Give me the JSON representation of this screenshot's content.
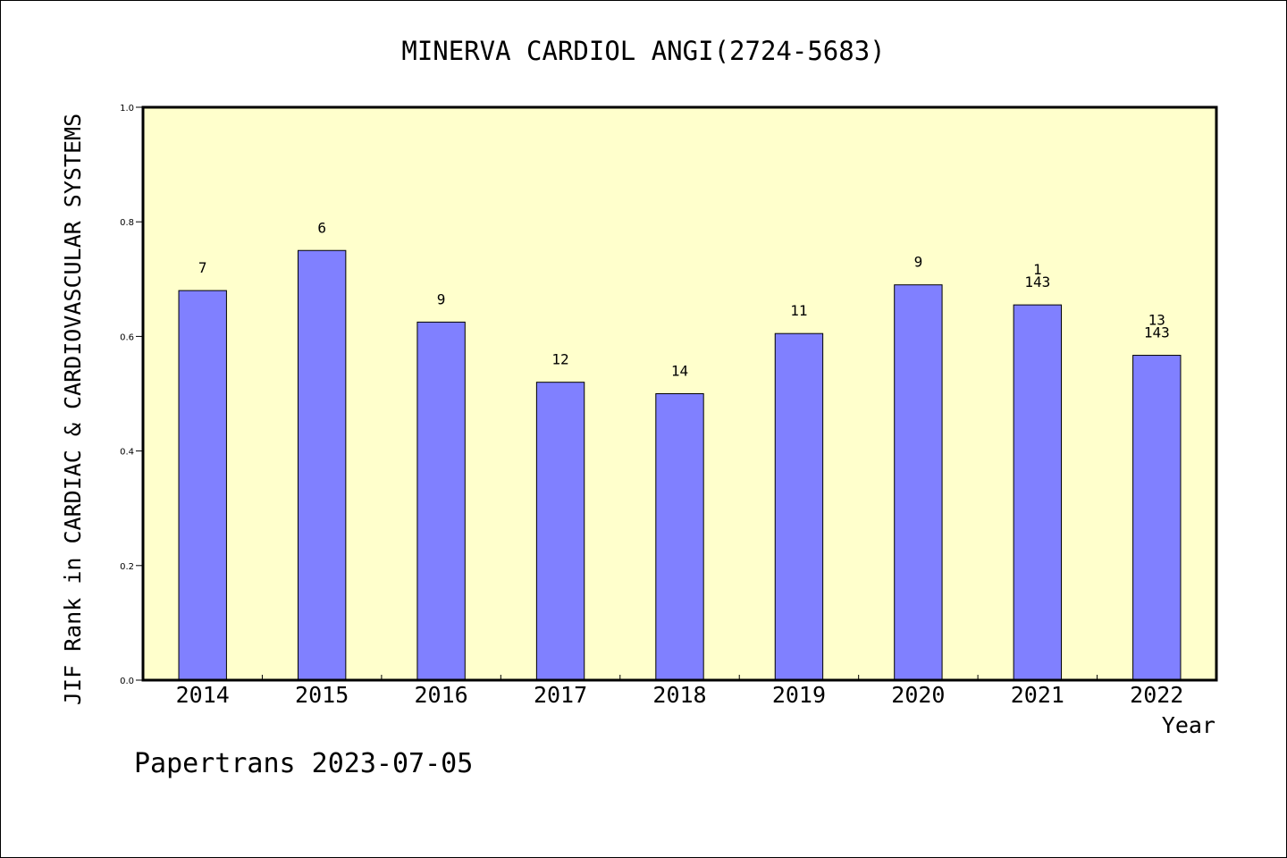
{
  "chart_data": {
    "type": "bar",
    "title": "MINERVA CARDIOL ANGI(2724-5683)",
    "ylabel": "JIF Rank in CARDIAC & CARDIOVASCULAR SYSTEMS",
    "xlabel": "Year",
    "categories": [
      "2014",
      "2015",
      "2016",
      "2017",
      "2018",
      "2019",
      "2020",
      "2021",
      "2022"
    ],
    "values": [
      0.68,
      0.75,
      0.625,
      0.52,
      0.5,
      0.605,
      0.69,
      0.655,
      0.567
    ],
    "bar_labels": [
      [
        "7"
      ],
      [
        "6"
      ],
      [
        "9"
      ],
      [
        "12"
      ],
      [
        "14"
      ],
      [
        "11"
      ],
      [
        "9"
      ],
      [
        "1",
        "143"
      ],
      [
        "13",
        "143"
      ]
    ],
    "ylim": [
      0,
      1.0
    ],
    "yticks": [
      0.0,
      0.2,
      0.4,
      0.6,
      0.8,
      1.0
    ],
    "ytick_labels": [
      "0.0",
      "0.2",
      "0.4",
      "0.6",
      "0.8",
      "1.0"
    ],
    "grid": false,
    "colors": {
      "plot_background": "#ffffcc",
      "bar_fill": "#8080ff",
      "bar_stroke": "#000000"
    }
  },
  "footer": {
    "text": "Papertrans 2023-07-05"
  }
}
